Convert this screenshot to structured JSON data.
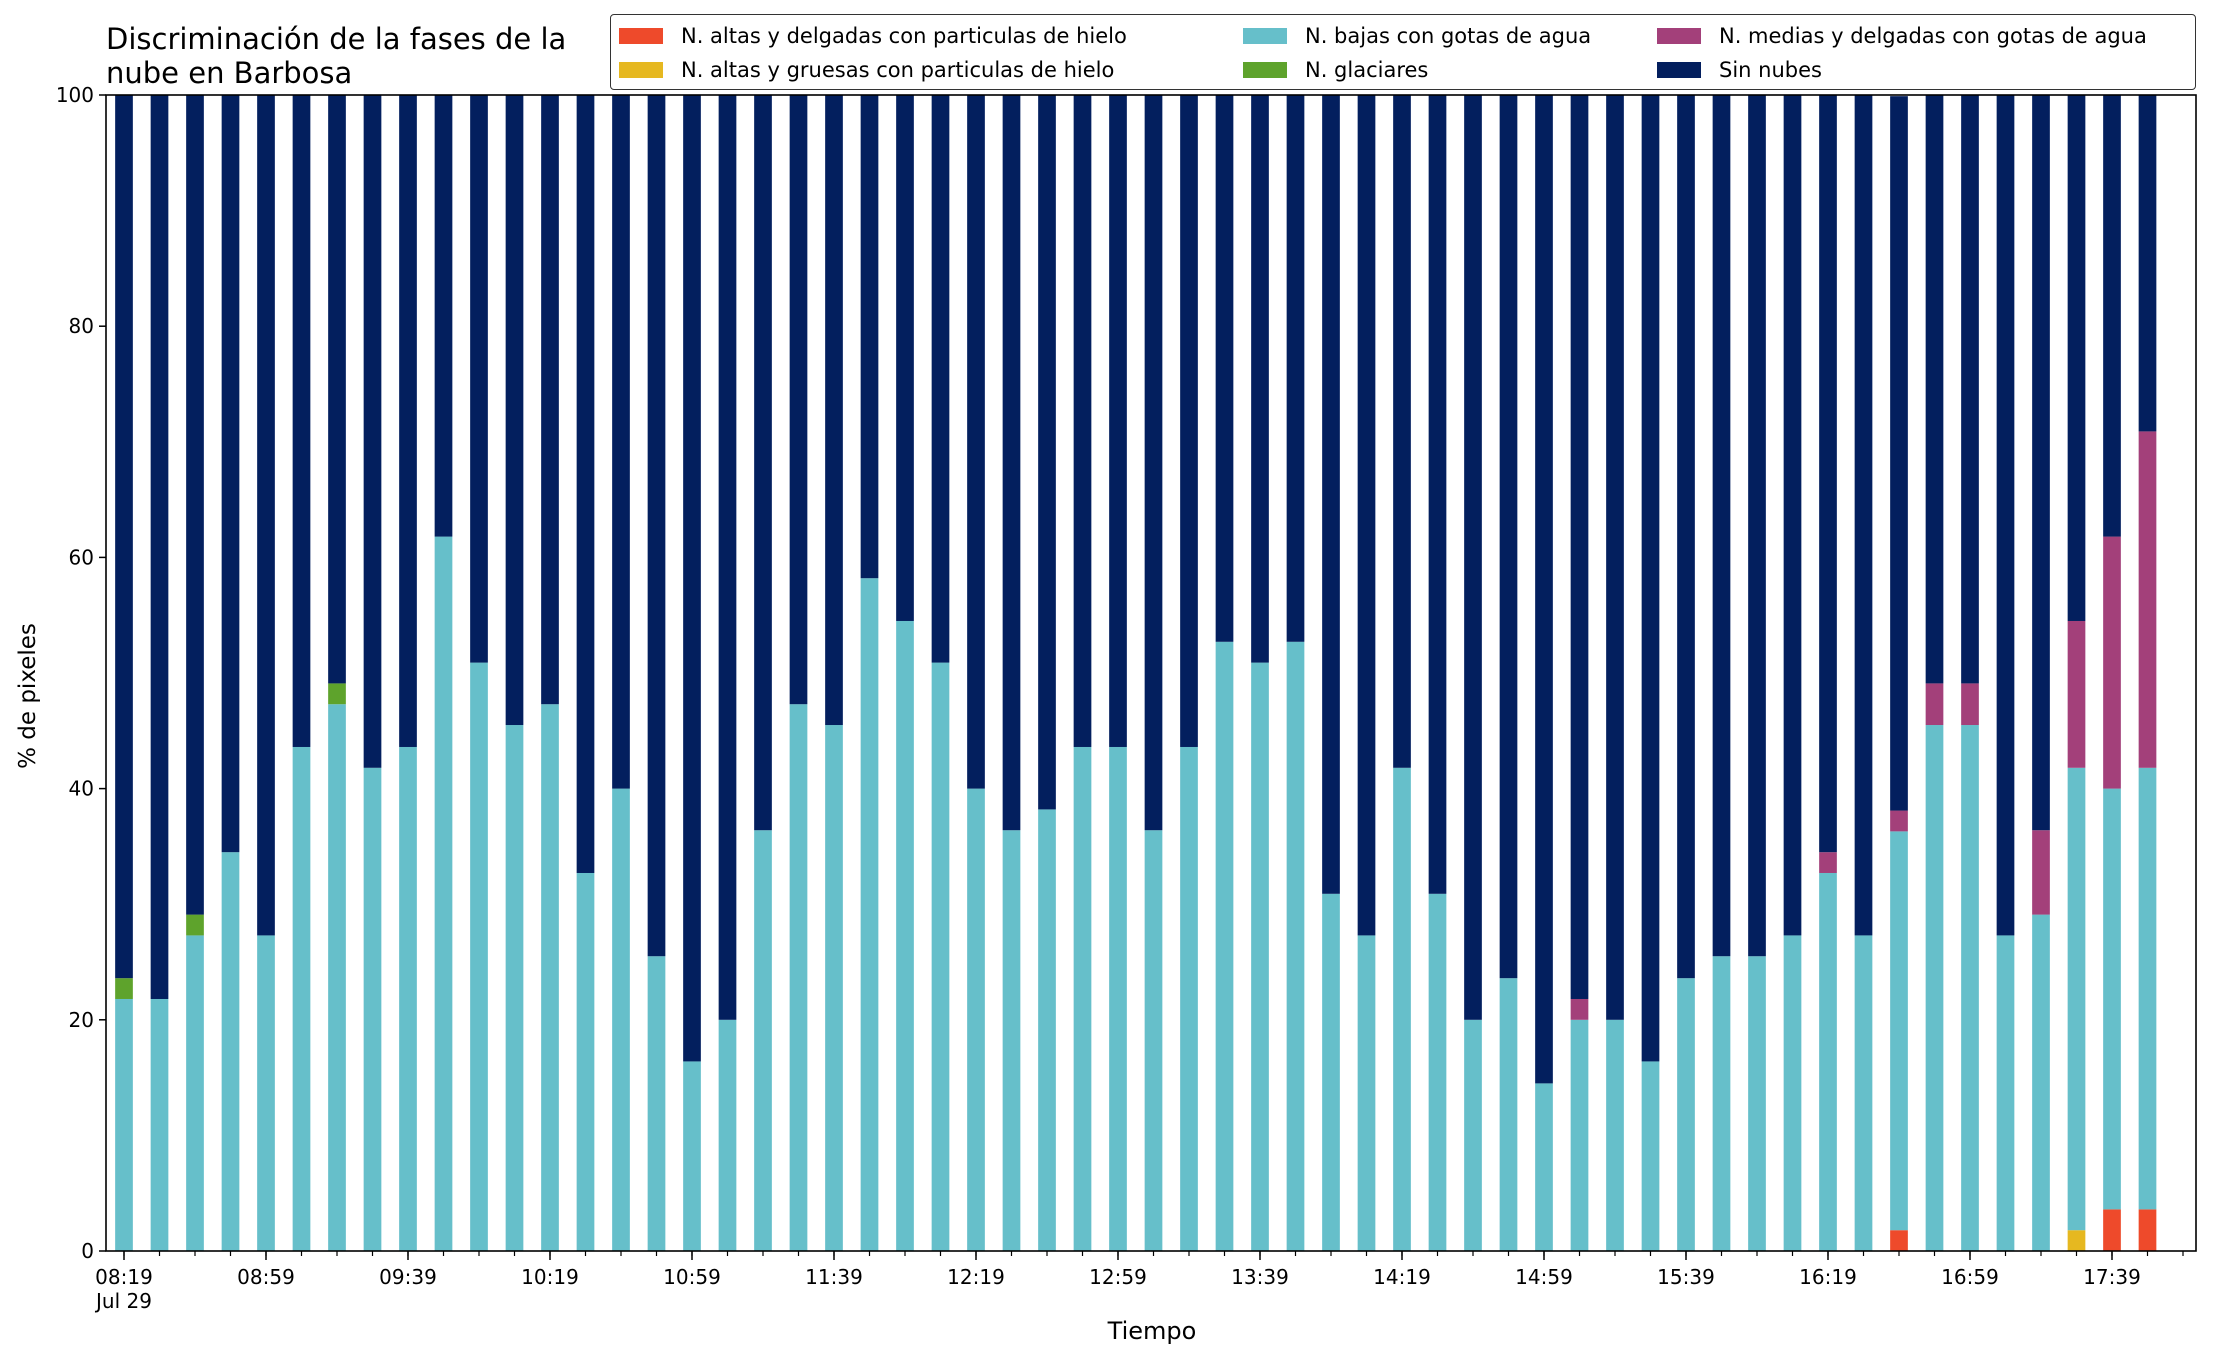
{
  "chart_data": {
    "type": "bar",
    "stacked": true,
    "title": "Discriminación de la fases de la nube en Barbosa",
    "xlabel": "Tiempo",
    "ylabel": "% de pixeles",
    "ylim": [
      0,
      100
    ],
    "yticks": [
      0,
      20,
      40,
      60,
      80,
      100
    ],
    "xtick_labels": [
      "08:19\nJul 29",
      "08:59",
      "09:39",
      "10:19",
      "10:59",
      "11:39",
      "12:19",
      "12:59",
      "13:39",
      "14:19",
      "14:59",
      "15:39",
      "16:19",
      "16:59",
      "17:39"
    ],
    "xtick_minor_count": 59,
    "bar_count": 58,
    "grid": false,
    "legend_position": "top-right",
    "series": [
      {
        "name": "N. altas y delgadas con particulas de hielo",
        "color": "#ee4a2b",
        "values": [
          0,
          0,
          0,
          0,
          0,
          0,
          0,
          0,
          0,
          0,
          0,
          0,
          0,
          0,
          0,
          0,
          0,
          0,
          0,
          0,
          0,
          0,
          0,
          0,
          0,
          0,
          0,
          0,
          0,
          0,
          0,
          0,
          0,
          0,
          0,
          0,
          0,
          0,
          0,
          0,
          0,
          0,
          0,
          0,
          0,
          0,
          0,
          0,
          0,
          0,
          1.8,
          0,
          0,
          0,
          0,
          0,
          3.6,
          3.6
        ]
      },
      {
        "name": "N. altas y gruesas con particulas de hielo",
        "color": "#e6b820",
        "values": [
          0,
          0,
          0,
          0,
          0,
          0,
          0,
          0,
          0,
          0,
          0,
          0,
          0,
          0,
          0,
          0,
          0,
          0,
          0,
          0,
          0,
          0,
          0,
          0,
          0,
          0,
          0,
          0,
          0,
          0,
          0,
          0,
          0,
          0,
          0,
          0,
          0,
          0,
          0,
          0,
          0,
          0,
          0,
          0,
          0,
          0,
          0,
          0,
          0,
          0,
          0,
          0,
          0,
          0,
          0,
          1.8,
          0,
          0
        ]
      },
      {
        "name": "N. bajas con gotas de agua",
        "color": "#66bfca",
        "values": [
          21.8,
          21.8,
          27.3,
          34.5,
          27.3,
          43.6,
          47.3,
          41.8,
          43.6,
          61.8,
          50.9,
          45.5,
          47.3,
          32.7,
          40.0,
          25.5,
          16.4,
          20.0,
          36.4,
          47.3,
          45.5,
          58.2,
          54.5,
          50.9,
          40.0,
          36.4,
          38.2,
          43.6,
          43.6,
          36.4,
          43.6,
          52.7,
          50.9,
          52.7,
          30.9,
          27.3,
          41.8,
          30.9,
          20.0,
          23.6,
          14.5,
          20.0,
          20.0,
          16.4,
          23.6,
          25.5,
          25.5,
          27.3,
          32.7,
          27.3,
          34.5,
          45.5,
          45.5,
          27.3,
          29.1,
          40.0,
          36.4,
          38.2
        ]
      },
      {
        "name": "N. glaciares",
        "color": "#5ea32c",
        "values": [
          1.8,
          0,
          1.8,
          0,
          0,
          0,
          1.8,
          0,
          0,
          0,
          0,
          0,
          0,
          0,
          0,
          0,
          0,
          0,
          0,
          0,
          0,
          0,
          0,
          0,
          0,
          0,
          0,
          0,
          0,
          0,
          0,
          0,
          0,
          0,
          0,
          0,
          0,
          0,
          0,
          0,
          0,
          0,
          0,
          0,
          0,
          0,
          0,
          0,
          0,
          0,
          0,
          0,
          0,
          0,
          0,
          0,
          0,
          0
        ]
      },
      {
        "name": "N. medias y delgadas con gotas de agua",
        "color": "#a3407a",
        "values": [
          0,
          0,
          0,
          0,
          0,
          0,
          0,
          0,
          0,
          0,
          0,
          0,
          0,
          0,
          0,
          0,
          0,
          0,
          0,
          0,
          0,
          0,
          0,
          0,
          0,
          0,
          0,
          0,
          0,
          0,
          0,
          0,
          0,
          0,
          0,
          0,
          0,
          0,
          0,
          0,
          0,
          1.8,
          0,
          0,
          0,
          0,
          0,
          0,
          1.8,
          0,
          1.8,
          3.6,
          3.6,
          0,
          7.3,
          12.7,
          21.8,
          29.1
        ]
      },
      {
        "name": "Sin nubes",
        "color": "#031f5e",
        "values": [
          76.4,
          78.2,
          70.9,
          65.5,
          72.7,
          56.4,
          50.9,
          58.2,
          56.4,
          38.2,
          49.1,
          54.5,
          52.7,
          67.3,
          60.0,
          74.5,
          83.6,
          80.0,
          63.6,
          52.7,
          54.5,
          41.8,
          45.5,
          49.1,
          60.0,
          63.6,
          61.8,
          56.4,
          56.4,
          63.6,
          56.4,
          47.3,
          49.1,
          47.3,
          69.1,
          72.7,
          58.2,
          69.1,
          80.0,
          76.4,
          85.5,
          78.2,
          80.0,
          83.6,
          76.4,
          74.5,
          74.5,
          72.7,
          65.5,
          72.7,
          61.8,
          50.9,
          50.9,
          72.7,
          63.6,
          45.5,
          38.2,
          29.1
        ]
      }
    ]
  }
}
